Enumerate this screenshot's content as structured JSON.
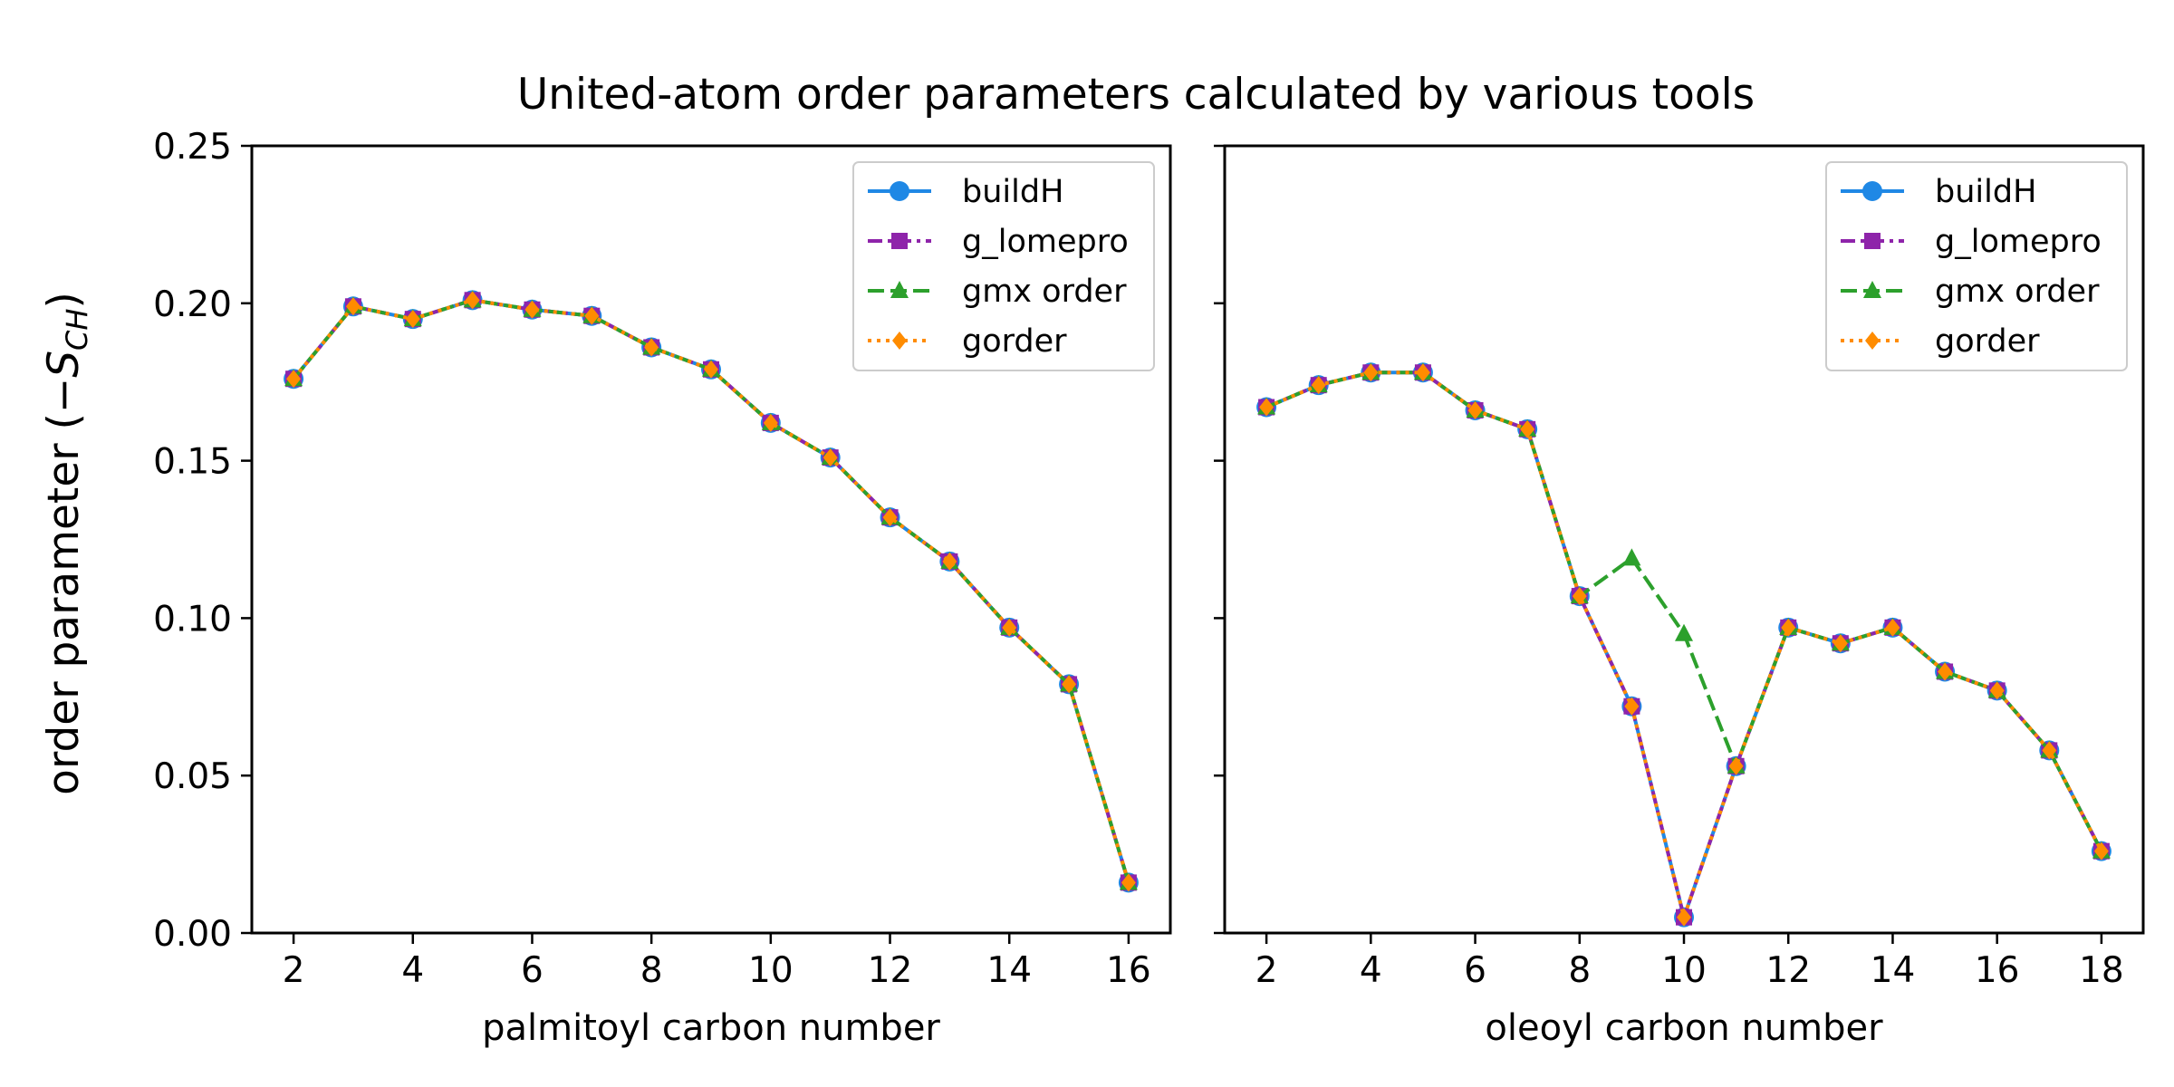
{
  "figure": {
    "title": "United-atom order parameters calculated by various tools",
    "ylabel_text": "order parameter (",
    "ylabel_math": "−S",
    "ylabel_sub": "CH",
    "ylabel_close": ")"
  },
  "colors": {
    "buildH": "#1f88e5",
    "g_lomepro": "#8e24aa",
    "gmx order": "#2ca02c",
    "gorder": "#ff8c00"
  },
  "chart_data": [
    {
      "type": "line",
      "xlabel": "palmitoyl carbon number",
      "ylabel": "order parameter (−S_CH)",
      "xlim": [
        1.3,
        16.7
      ],
      "ylim": [
        0.0,
        0.25
      ],
      "xticks": [
        "2",
        "4",
        "6",
        "8",
        "10",
        "12",
        "14",
        "16"
      ],
      "yticks": [
        "0.00",
        "0.05",
        "0.10",
        "0.15",
        "0.20",
        "0.25"
      ],
      "legend": "top-right",
      "grid": false,
      "x": [
        2,
        3,
        4,
        5,
        6,
        7,
        8,
        9,
        10,
        11,
        12,
        13,
        14,
        15,
        16
      ],
      "series": [
        {
          "name": "buildH",
          "marker": "circle",
          "linestyle": "solid",
          "values": [
            0.176,
            0.199,
            0.195,
            0.201,
            0.198,
            0.196,
            0.186,
            0.179,
            0.162,
            0.151,
            0.132,
            0.118,
            0.097,
            0.079,
            0.016
          ]
        },
        {
          "name": "g_lomepro",
          "marker": "square",
          "linestyle": "dashdot",
          "values": [
            0.176,
            0.199,
            0.195,
            0.201,
            0.198,
            0.196,
            0.186,
            0.179,
            0.162,
            0.151,
            0.132,
            0.118,
            0.097,
            0.079,
            0.016
          ]
        },
        {
          "name": "gmx order",
          "marker": "triangle",
          "linestyle": "dashed",
          "values": [
            0.176,
            0.199,
            0.195,
            0.201,
            0.198,
            0.196,
            0.186,
            0.179,
            0.162,
            0.151,
            0.132,
            0.118,
            0.097,
            0.079,
            0.016
          ]
        },
        {
          "name": "gorder",
          "marker": "diamond",
          "linestyle": "dotted",
          "values": [
            0.176,
            0.199,
            0.195,
            0.201,
            0.198,
            0.196,
            0.186,
            0.179,
            0.162,
            0.151,
            0.132,
            0.118,
            0.097,
            0.079,
            0.016
          ]
        }
      ]
    },
    {
      "type": "line",
      "xlabel": "oleoyl carbon number",
      "ylabel": "",
      "xlim": [
        1.2,
        18.8
      ],
      "ylim": [
        0.0,
        0.25
      ],
      "xticks": [
        "2",
        "4",
        "6",
        "8",
        "10",
        "12",
        "14",
        "16",
        "18"
      ],
      "yticks": [],
      "legend": "top-right",
      "grid": false,
      "x": [
        2,
        3,
        4,
        5,
        6,
        7,
        8,
        9,
        10,
        11,
        12,
        13,
        14,
        15,
        16,
        17,
        18
      ],
      "series": [
        {
          "name": "buildH",
          "marker": "circle",
          "linestyle": "solid",
          "values": [
            0.167,
            0.174,
            0.178,
            0.178,
            0.166,
            0.16,
            0.107,
            0.072,
            0.005,
            0.053,
            0.097,
            0.092,
            0.097,
            0.083,
            0.077,
            0.058,
            0.026
          ]
        },
        {
          "name": "g_lomepro",
          "marker": "square",
          "linestyle": "dashdot",
          "values": [
            0.167,
            0.174,
            0.178,
            0.178,
            0.166,
            0.16,
            0.107,
            0.072,
            0.005,
            0.053,
            0.097,
            0.092,
            0.097,
            0.083,
            0.077,
            0.058,
            0.026
          ]
        },
        {
          "name": "gmx order",
          "marker": "triangle",
          "linestyle": "dashed",
          "values": [
            0.167,
            0.174,
            0.178,
            0.178,
            0.166,
            0.16,
            0.107,
            0.119,
            0.095,
            0.053,
            0.097,
            0.092,
            0.097,
            0.083,
            0.077,
            0.058,
            0.026
          ]
        },
        {
          "name": "gorder",
          "marker": "diamond",
          "linestyle": "dotted",
          "values": [
            0.167,
            0.174,
            0.178,
            0.178,
            0.166,
            0.16,
            0.107,
            0.072,
            0.005,
            0.053,
            0.097,
            0.092,
            0.097,
            0.083,
            0.077,
            0.058,
            0.026
          ]
        }
      ]
    }
  ]
}
